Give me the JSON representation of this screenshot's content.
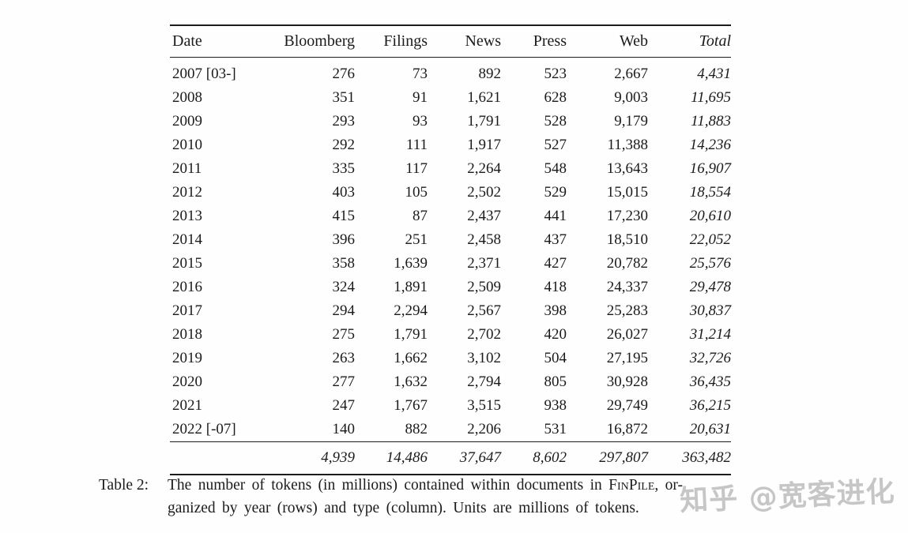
{
  "table": {
    "columns": [
      "Date",
      "Bloomberg",
      "Filings",
      "News",
      "Press",
      "Web",
      "Total"
    ],
    "rows": [
      {
        "date": "2007 [03-]",
        "values": [
          "276",
          "73",
          "892",
          "523",
          "2,667",
          "4,431"
        ]
      },
      {
        "date": "2008",
        "values": [
          "351",
          "91",
          "1,621",
          "628",
          "9,003",
          "11,695"
        ]
      },
      {
        "date": "2009",
        "values": [
          "293",
          "93",
          "1,791",
          "528",
          "9,179",
          "11,883"
        ]
      },
      {
        "date": "2010",
        "values": [
          "292",
          "111",
          "1,917",
          "527",
          "11,388",
          "14,236"
        ]
      },
      {
        "date": "2011",
        "values": [
          "335",
          "117",
          "2,264",
          "548",
          "13,643",
          "16,907"
        ]
      },
      {
        "date": "2012",
        "values": [
          "403",
          "105",
          "2,502",
          "529",
          "15,015",
          "18,554"
        ]
      },
      {
        "date": "2013",
        "values": [
          "415",
          "87",
          "2,437",
          "441",
          "17,230",
          "20,610"
        ]
      },
      {
        "date": "2014",
        "values": [
          "396",
          "251",
          "2,458",
          "437",
          "18,510",
          "22,052"
        ]
      },
      {
        "date": "2015",
        "values": [
          "358",
          "1,639",
          "2,371",
          "427",
          "20,782",
          "25,576"
        ]
      },
      {
        "date": "2016",
        "values": [
          "324",
          "1,891",
          "2,509",
          "418",
          "24,337",
          "29,478"
        ]
      },
      {
        "date": "2017",
        "values": [
          "294",
          "2,294",
          "2,567",
          "398",
          "25,283",
          "30,837"
        ]
      },
      {
        "date": "2018",
        "values": [
          "275",
          "1,791",
          "2,702",
          "420",
          "26,027",
          "31,214"
        ]
      },
      {
        "date": "2019",
        "values": [
          "263",
          "1,662",
          "3,102",
          "504",
          "27,195",
          "32,726"
        ]
      },
      {
        "date": "2020",
        "values": [
          "277",
          "1,632",
          "2,794",
          "805",
          "30,928",
          "36,435"
        ]
      },
      {
        "date": "2021",
        "values": [
          "247",
          "1,767",
          "3,515",
          "938",
          "29,749",
          "36,215"
        ]
      },
      {
        "date": "2022 [-07]",
        "values": [
          "140",
          "882",
          "2,206",
          "531",
          "16,872",
          "20,631"
        ]
      }
    ],
    "totals": [
      "4,939",
      "14,486",
      "37,647",
      "8,602",
      "297,807",
      "363,482"
    ]
  },
  "caption": {
    "label": "Table 2:",
    "line1_before": "The number of tokens (in millions) contained within documents in ",
    "dataset_name": "FinPile",
    "line1_after": ", or-",
    "line2": "ganized by year (rows) and type (column). Units are millions of tokens."
  },
  "watermark": {
    "text": "知乎 @宽客进化",
    "color": "#bdbdbd"
  }
}
